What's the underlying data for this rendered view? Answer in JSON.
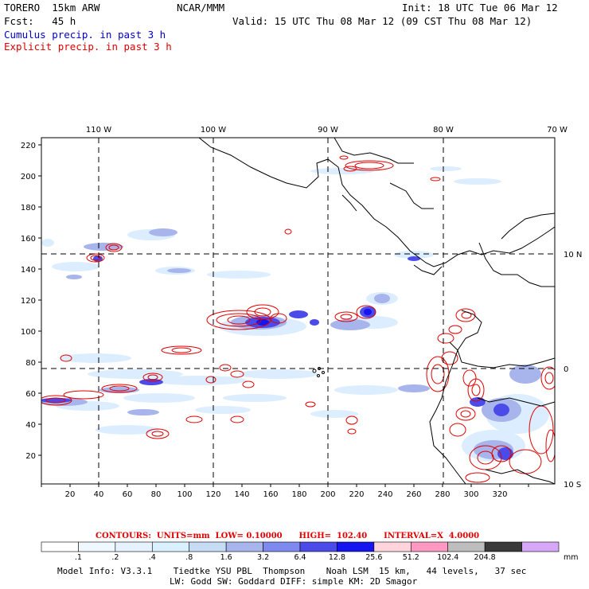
{
  "header": {
    "model": "TORERO  15km ARW",
    "org": "NCAR/MMM",
    "init": "Init: 18 UTC Tue 06 Mar 12",
    "fcst": "Fcst:   45 h",
    "valid": "Valid: 15 UTC Thu 08 Mar 12 (09 CST Thu 08 Mar 12)",
    "field_cumulus": "Cumulus precip. in past 3 h",
    "field_explicit": "Explicit precip. in past 3 h"
  },
  "map": {
    "lon_labels": [
      "110 W",
      "100 W",
      "90 W",
      "80 W",
      "70 W"
    ],
    "lat_labels": [
      "10 N",
      "0",
      "10 S"
    ],
    "x_ticks": [
      "20",
      "40",
      "60",
      "80",
      "100",
      "120",
      "140",
      "160",
      "180",
      "200",
      "220",
      "240",
      "260",
      "280",
      "300",
      "320"
    ],
    "y_ticks": [
      "20",
      "40",
      "60",
      "80",
      "100",
      "120",
      "140",
      "160",
      "180",
      "200",
      "220"
    ],
    "colors": {
      "cumulus": "#0000c8",
      "explicit": "#e00000",
      "land": "#000000",
      "grid": "#000000"
    }
  },
  "contours": {
    "label": "CONTOURS:  UNITS=mm  LOW= 0.10000      HIGH=  102.40      INTERVAL=X  4.0000"
  },
  "colorbar": {
    "colors": [
      "#ffffff",
      "#f0f8ff",
      "#e6f3ff",
      "#d8f0ff",
      "#c6dcf5",
      "#a8b4ec",
      "#7e8af0",
      "#4b4bea",
      "#1515f0",
      "#ffd4dc",
      "#ff99c4",
      "#bdbdbd",
      "#3a3a3a",
      "#d8a8f8"
    ],
    "labels": [
      ".1",
      ".2",
      ".4",
      ".8",
      "1.6",
      "3.2",
      "6.4",
      "12.8",
      "25.6",
      "51.2",
      "102.4",
      "204.8"
    ],
    "unit": "mm"
  },
  "footer": {
    "line1": "Model Info: V3.3.1    Tiedtke YSU PBL  Thompson    Noah LSM  15 km,   44 levels,   37 sec",
    "line2": "LW: Godd SW: Goddard DIFF: simple KM: 2D Smagor"
  }
}
